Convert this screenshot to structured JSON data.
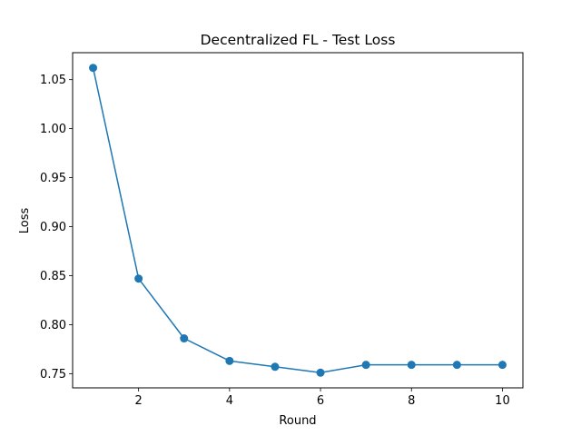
{
  "chart_data": {
    "type": "line",
    "title": "Decentralized FL - Test Loss",
    "xlabel": "Round",
    "ylabel": "Loss",
    "x": [
      1,
      2,
      3,
      4,
      5,
      6,
      7,
      8,
      9,
      10
    ],
    "series": [
      {
        "values": [
          1.062,
          0.847,
          0.786,
          0.763,
          0.757,
          0.751,
          0.759,
          0.759,
          0.759,
          0.759
        ],
        "color": "#1f77b4",
        "marker": "circle"
      }
    ],
    "xlim": [
      0.55,
      10.45
    ],
    "ylim": [
      0.7355,
      1.0775
    ],
    "xticks": [
      2,
      4,
      6,
      8,
      10
    ],
    "xtick_labels": [
      "2",
      "4",
      "6",
      "8",
      "10"
    ],
    "yticks": [
      0.75,
      0.8,
      0.85,
      0.9,
      0.95,
      1.0,
      1.05
    ],
    "ytick_labels": [
      "0.75",
      "0.80",
      "0.85",
      "0.90",
      "0.95",
      "1.00",
      "1.05"
    ],
    "grid": false,
    "legend": false
  }
}
